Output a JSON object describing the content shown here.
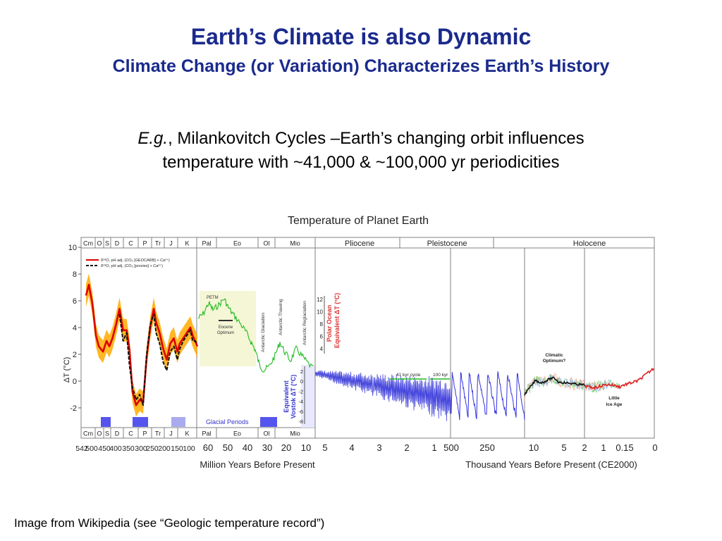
{
  "slide": {
    "title": "Earth’s Climate is also Dynamic",
    "subtitle": "Climate Change (or Variation) Characterizes Earth’s History",
    "body_eg": "E.g.",
    "body_line1": ", Milankovitch Cycles –Earth’s changing orbit influences",
    "body_line2": "temperature with ~41,000 & ~100,000 yr periodicities",
    "caption": "Image from Wikipedia (see “Geologic temperature record”)"
  },
  "chart_data": {
    "type": "line",
    "title": "Temperature of Planet Earth",
    "ylabel": "ΔT (°C)",
    "ylim": [
      -4,
      10
    ],
    "y_ticks": [
      10,
      8,
      6,
      4,
      2,
      0,
      -2
    ],
    "grid": false,
    "colors": {
      "frame": "#808080",
      "period_shade": "#ffaa00",
      "series_red": "#dd0000",
      "series_black": "#111111",
      "green": "#22bb22",
      "blue": "#4444dd",
      "accent_red": "#dd3333",
      "eocene_fill": "#f4f6d6",
      "vostok_fill": "#e8e8ff",
      "glacial": "#5555ee",
      "glacial_light": "#aaaaee"
    },
    "top_periods": [
      "Cm",
      "O",
      "S",
      "D",
      "C",
      "P",
      "Tr",
      "J",
      "K",
      "Pal",
      "Eo",
      "Ol",
      "Mio"
    ],
    "bottom_periods": [
      "Cm",
      "O",
      "S",
      "D",
      "C",
      "P",
      "Tr",
      "J",
      "K",
      "Pal",
      "Eo",
      "Ol",
      "Mio"
    ],
    "epochs": [
      "Pliocene",
      "Pleistocene",
      "Holocene"
    ],
    "panels": [
      {
        "xlabel": "Million Years Before Present",
        "ticks": [
          "542",
          "500",
          "450",
          "400",
          "350",
          "300",
          "250",
          "200",
          "150",
          "100"
        ]
      },
      {
        "xlabel": "",
        "ticks": [
          "60",
          "50",
          "40",
          "30",
          "20",
          "10"
        ]
      },
      {
        "xlabel": "",
        "ticks": [
          "5",
          "4",
          "3",
          "2",
          "1"
        ]
      },
      {
        "xlabel": "Thousand Years Before Present (CE2000)",
        "ticks": [
          "500",
          "250"
        ]
      },
      {
        "xlabel": "",
        "ticks": [
          "10",
          "5",
          "2",
          "1",
          "0.15",
          "0"
        ]
      }
    ],
    "legend": {
      "placement": "top-left",
      "entries": [
        "δ¹⁸O, pH adj. (CO₂ [GEOCARB] + Ca²⁺)",
        "δ¹⁸O, pH adj. (CO₂ [proxies] + Ca²⁺)"
      ]
    },
    "annotations": {
      "petm": "PETM",
      "eocene": "Eocene",
      "optimum": "Optimum",
      "ant_glaciation": "Antarctic Glaciation",
      "ant_thawing": "Antarctic Thawing",
      "ant_reglaciation": "Antarctic Reglaciation",
      "polar_ocean_1": "Polar Ocean",
      "polar_ocean_2": "Equivalent ΔT (°C)",
      "vostok_1": "Equivalent",
      "vostok_2": "Vostok ΔT (°C)",
      "cycle_41": "41 kyr cycle",
      "cycle_100": "100 kyr",
      "climatic": "Climatic",
      "climatic_opt": "Optimum?",
      "little": "Little",
      "ice_age": "Ice Age",
      "glacial_periods": "Glacial Periods"
    },
    "polar_ticks": [
      "12",
      "10",
      "8",
      "6",
      "4"
    ],
    "vostok_ticks": [
      "2",
      "0",
      "-2",
      "-4",
      "-6",
      "-8"
    ],
    "series": [
      {
        "name": "δ¹⁸O, pH adj. (CO₂ [GEOCARB] + Ca²⁺)",
        "x_mya": [
          542,
          530,
          515,
          500,
          488,
          470,
          455,
          443,
          430,
          415,
          400,
          385,
          370,
          358,
          345,
          330,
          315,
          300,
          285,
          270,
          255,
          245,
          230,
          215,
          200,
          185,
          170,
          155,
          145,
          130,
          115,
          100,
          90,
          80,
          70
        ],
        "y": [
          6.4,
          7.2,
          5.8,
          3.4,
          2.6,
          2.2,
          3.0,
          2.6,
          3.2,
          4.2,
          5.4,
          3.8,
          3.8,
          2.4,
          -0.8,
          -1.8,
          -1.4,
          -1.6,
          1.8,
          4.0,
          5.4,
          4.4,
          3.6,
          2.4,
          1.6,
          2.8,
          3.2,
          2.2,
          2.8,
          3.2,
          3.6,
          4.0,
          3.4,
          3.0,
          2.6
        ]
      },
      {
        "name": "δ¹⁸O, pH adj. (CO₂ [proxies] + Ca²⁺)",
        "x_mya": [
          400,
          385,
          370,
          358,
          345,
          330,
          315,
          300,
          285,
          270,
          255,
          245,
          230,
          215,
          200,
          185,
          170,
          155,
          145,
          130,
          115,
          100,
          90,
          80,
          70
        ],
        "y": [
          5.0,
          3.0,
          3.6,
          1.2,
          -0.5,
          -1.4,
          -1.0,
          -1.8,
          2.0,
          4.2,
          5.0,
          3.6,
          2.8,
          1.4,
          0.8,
          2.2,
          2.6,
          1.6,
          2.4,
          3.0,
          3.4,
          3.8,
          3.0,
          3.0,
          2.8
        ]
      }
    ]
  }
}
